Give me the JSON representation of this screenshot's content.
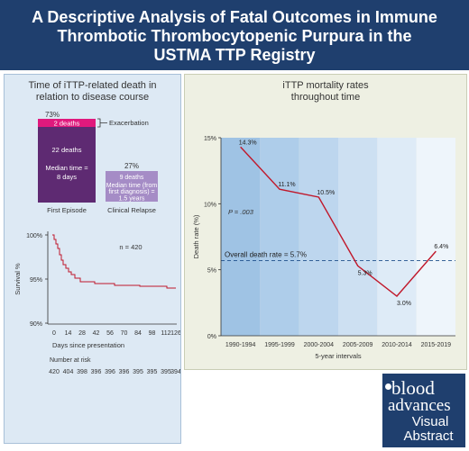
{
  "title": "A Descriptive Analysis of Fatal Outcomes in Immune Thrombotic Thrombocytopenic Purpura in the USTMA TTP Registry",
  "colors": {
    "header": "#1f3f6e",
    "exacerbation": "#e0197d",
    "first_episode": "#5e2a72",
    "relapse": "#a58cc6",
    "line": "#c0182b"
  },
  "left_panel": {
    "title_line1": "Time of iTTP-related death in",
    "title_line2": "relation to disease course",
    "first_episode": {
      "percent": "73%",
      "exacerbation_count": "2 deaths",
      "exacerbation_label": "Exacerbation",
      "count": "22 deaths",
      "median_line1": "Median time =",
      "median_line2": "8 days",
      "label": "First Episode"
    },
    "relapse": {
      "percent": "27%",
      "count": "9 deaths",
      "median_line1": "Median time (from",
      "median_line2": "first diagnosis) =",
      "median_line3": "1.5 years",
      "label": "Clinical Relapse"
    }
  },
  "survival_chart": {
    "n_label": "n = 420",
    "ylabel": "Survival %",
    "xlabel": "Days since presentation",
    "y_ticks": [
      "100%",
      "95%",
      "90%"
    ],
    "x_ticks": [
      "0",
      "14",
      "28",
      "42",
      "56",
      "70",
      "84",
      "98",
      "112",
      "126"
    ],
    "risk_label": "Number at risk",
    "risk_values": [
      "420",
      "404",
      "398",
      "396",
      "396",
      "396",
      "395",
      "395",
      "395",
      "394"
    ]
  },
  "right_panel": {
    "title_line1": "iTTP mortality rates",
    "title_line2": "throughout time"
  },
  "chart_data": {
    "type": "line",
    "categories": [
      "1990-1994",
      "1995-1999",
      "2000-2004",
      "2005-2009",
      "2010-2014",
      "2015-2019"
    ],
    "values": [
      14.3,
      11.1,
      10.5,
      5.3,
      3.0,
      6.4
    ],
    "value_labels": [
      "14.3%",
      "11.1%",
      "10.5%",
      "5.3%",
      "3.0%",
      "6.4%"
    ],
    "ylabel": "Death rate (%)",
    "xlabel": "5-year intervals",
    "ylim": [
      0,
      15
    ],
    "y_ticks": [
      "0%",
      "5%",
      "10%",
      "15%"
    ],
    "y_tick_values": [
      0,
      5,
      10,
      15
    ],
    "reference_line": {
      "value": 5.7,
      "label": "Overall death rate = 5.7%"
    },
    "p_value": "P = .003",
    "band_colors": [
      "#9fc3e4",
      "#aecdea",
      "#bdd6ee",
      "#cde0f2",
      "#deebf7",
      "#eef5fb"
    ]
  },
  "logo": {
    "line1": "blood",
    "line2": "advances",
    "line3": "Visual",
    "line4": "Abstract"
  }
}
